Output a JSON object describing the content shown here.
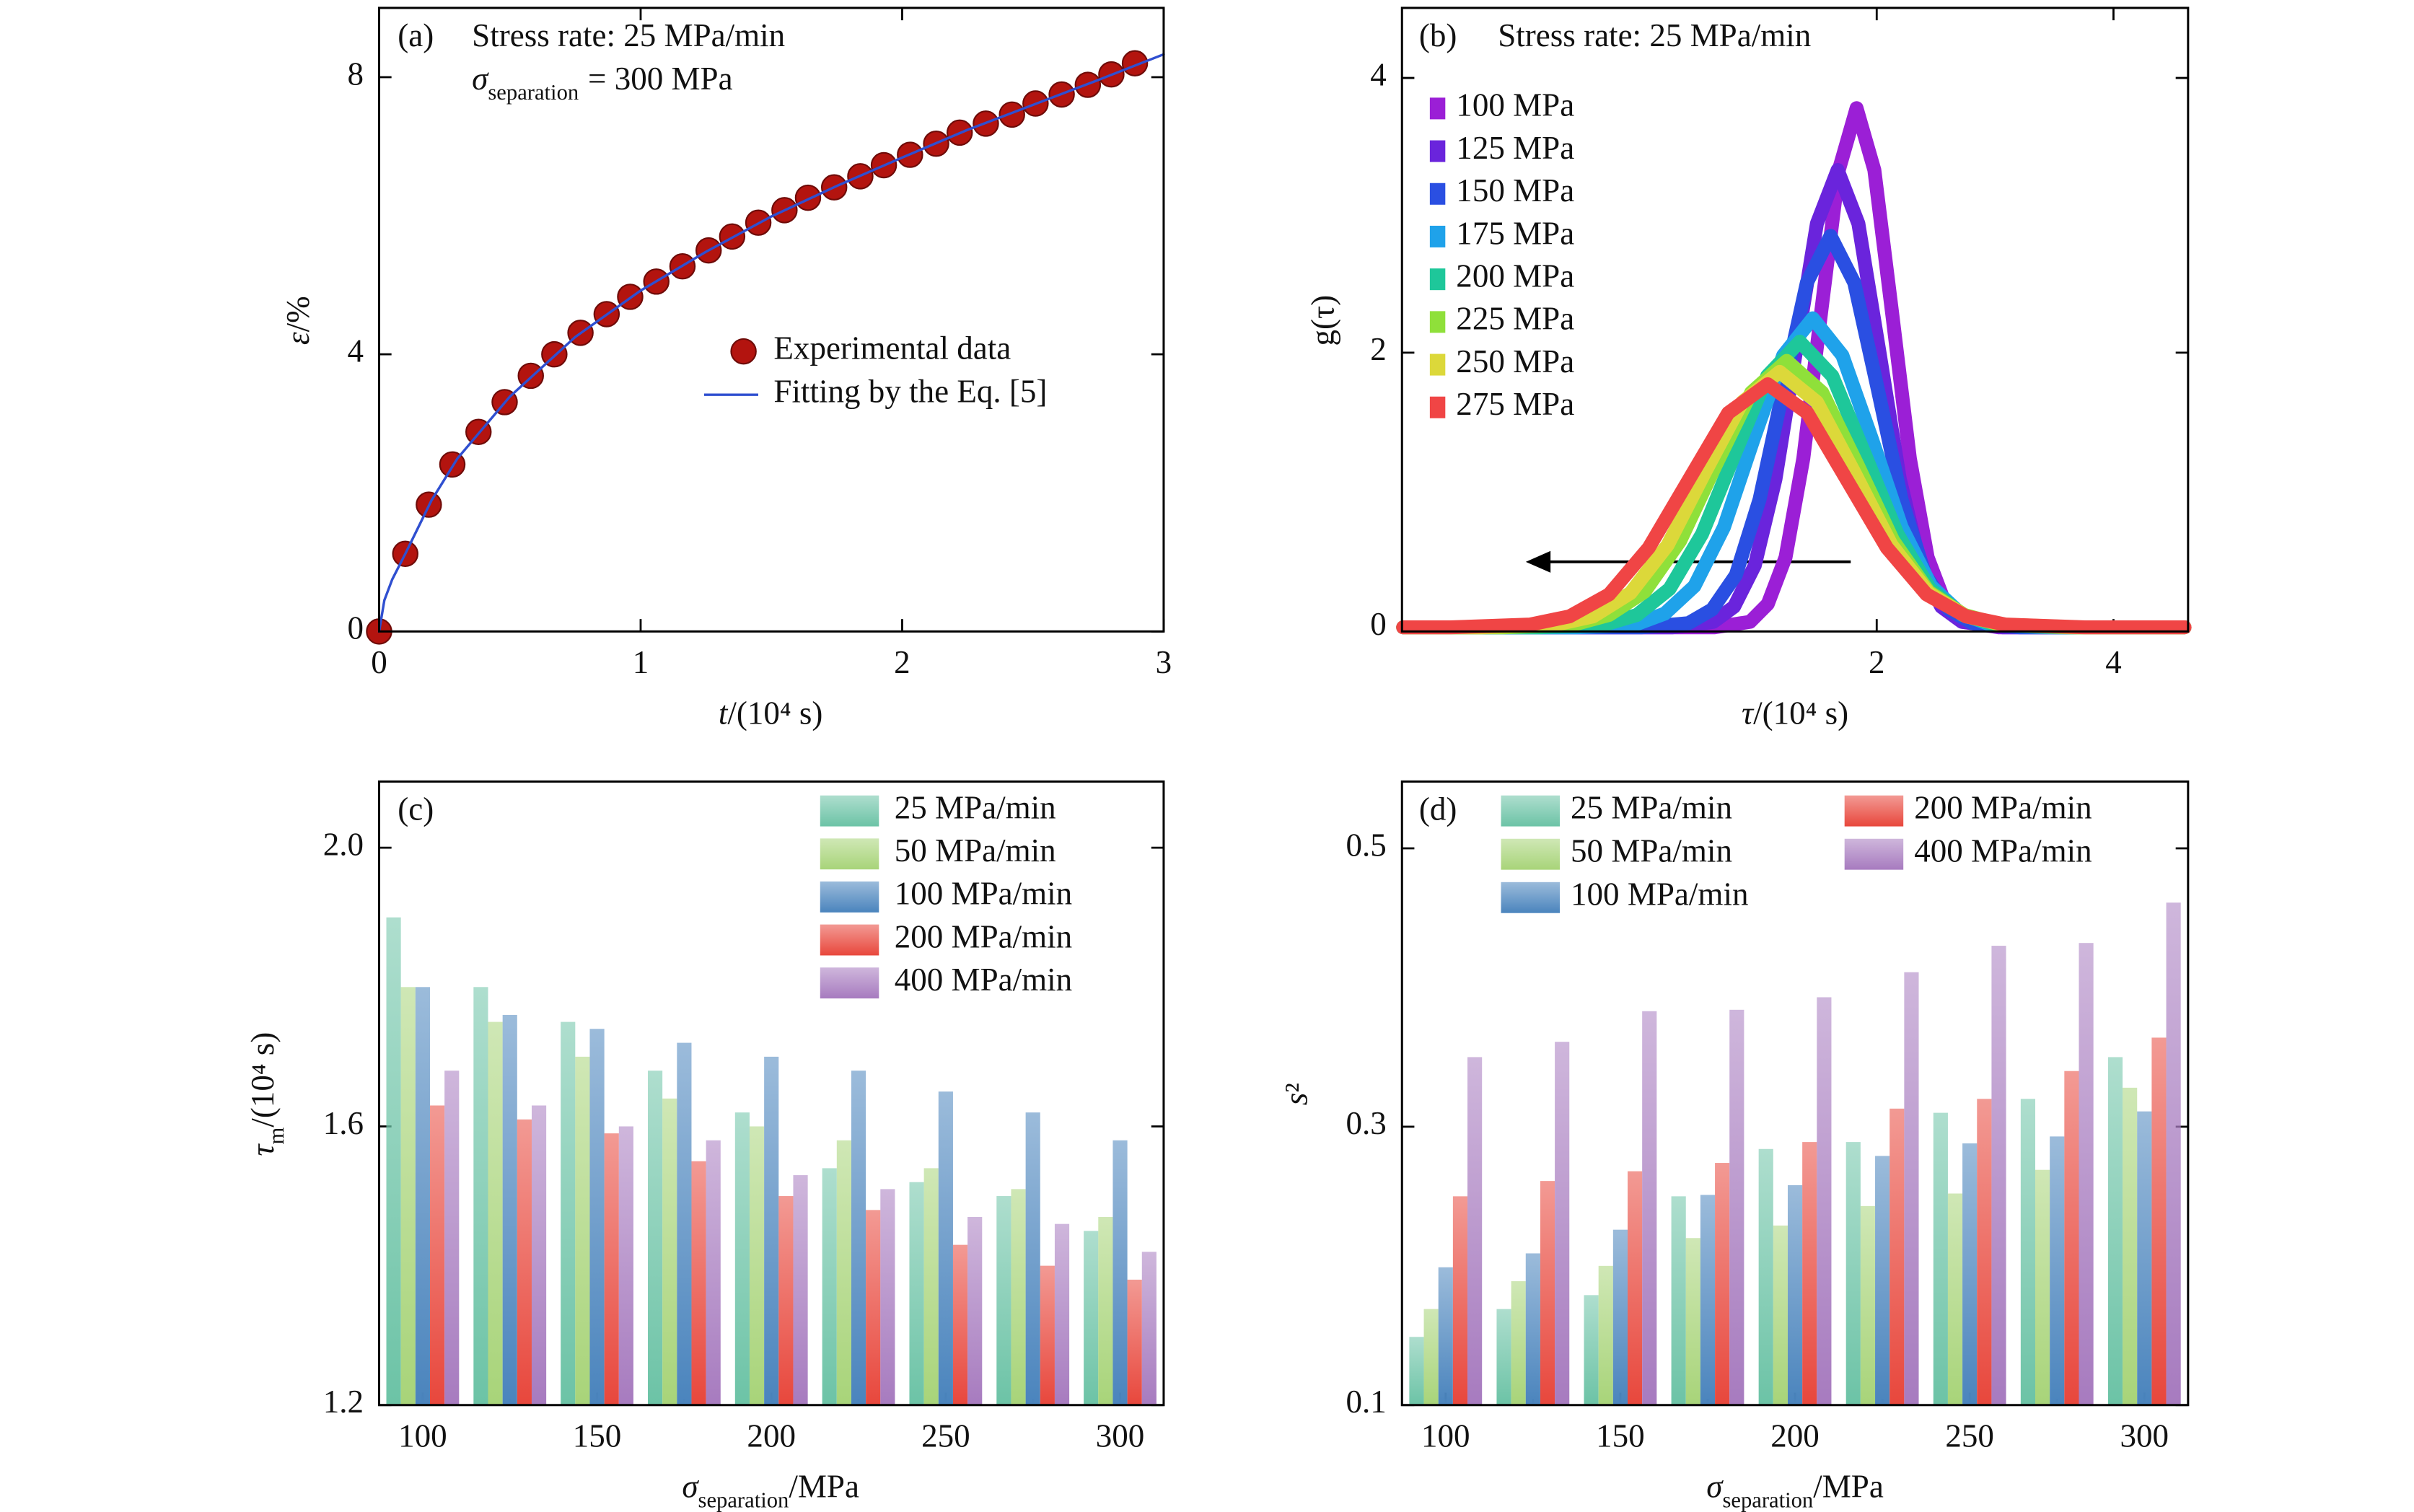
{
  "chart_data": [
    {
      "type": "scatter",
      "annotations": [
        "(a)",
        "Stress rate: 25 MPa/min",
        {
          "main": "σ",
          "sub": "separation",
          "rest": "= 300 MPa"
        }
      ],
      "xlabel": {
        "main": "t",
        "rest": "/(10⁴ s)"
      },
      "ylabel": {
        "main": "ε",
        "rest": "/%"
      },
      "xlim": [
        0,
        3
      ],
      "xticks": [
        0,
        1,
        2,
        3
      ],
      "ylim": [
        0,
        9
      ],
      "yticks": [
        0,
        4,
        8
      ],
      "series": [
        {
          "name": "Experimental data",
          "type": "scatter",
          "color": "#b3140f",
          "x": [
            0,
            0.1,
            0.19,
            0.28,
            0.38,
            0.48,
            0.58,
            0.67,
            0.77,
            0.87,
            0.96,
            1.06,
            1.16,
            1.26,
            1.35,
            1.45,
            1.55,
            1.64,
            1.74,
            1.84,
            1.93,
            2.03,
            2.13,
            2.22,
            2.32,
            2.42,
            2.51,
            2.61,
            2.71,
            2.8,
            2.89
          ],
          "values": [
            0,
            1.12,
            1.83,
            2.41,
            2.88,
            3.31,
            3.69,
            4.0,
            4.31,
            4.58,
            4.83,
            5.05,
            5.27,
            5.5,
            5.7,
            5.9,
            6.08,
            6.26,
            6.41,
            6.57,
            6.73,
            6.88,
            7.04,
            7.2,
            7.33,
            7.46,
            7.62,
            7.75,
            7.89,
            8.04,
            8.2
          ]
        },
        {
          "name": "Fitting by the Eq. [5]",
          "type": "line",
          "color": "#2f4fd0",
          "x": [
            0,
            0.02,
            0.05,
            0.1,
            0.2,
            0.3,
            0.5,
            0.75,
            1,
            1.25,
            1.5,
            1.75,
            2,
            2.25,
            2.5,
            2.75,
            3
          ],
          "values": [
            0,
            0.45,
            0.75,
            1.12,
            1.89,
            2.5,
            3.39,
            4.25,
            4.92,
            5.48,
            5.99,
            6.43,
            6.84,
            7.24,
            7.6,
            7.96,
            8.33
          ]
        }
      ]
    },
    {
      "type": "line",
      "annotations": [
        "(b)",
        "Stress rate: 25 MPa/min"
      ],
      "xlabel": {
        "main": "τ",
        "rest": "/(10⁴ s)"
      },
      "ylabel": "g(τ)",
      "xlim": [
        -2.01,
        4.63
      ],
      "xticks": [
        2,
        4
      ],
      "ylim": [
        -0.03,
        4.51
      ],
      "yticks": [
        0,
        2,
        4
      ],
      "series": [
        {
          "name": "100 MPa",
          "color": "#9b1fd6",
          "x": [
            -2.0,
            0.63,
            0.93,
            1.08,
            1.23,
            1.38,
            1.53,
            1.68,
            1.83,
            1.98,
            2.13,
            2.28,
            2.43,
            2.58,
            2.73,
            3.03,
            4.6
          ],
          "values": [
            0,
            0,
            0.04,
            0.17,
            0.51,
            1.23,
            2.29,
            3.33,
            3.78,
            3.33,
            2.29,
            1.23,
            0.51,
            0.17,
            0.04,
            0,
            0
          ]
        },
        {
          "name": "125 MPa",
          "color": "#6a24dc",
          "x": [
            -2.0,
            0.27,
            0.62,
            0.795,
            0.97,
            1.145,
            1.32,
            1.495,
            1.67,
            1.845,
            2.02,
            2.195,
            2.37,
            2.545,
            2.72,
            3.07,
            4.6
          ],
          "values": [
            0,
            0,
            0.04,
            0.15,
            0.45,
            1.08,
            2.02,
            2.94,
            3.33,
            2.94,
            2.02,
            1.08,
            0.45,
            0.15,
            0.04,
            0,
            0
          ]
        },
        {
          "name": "150 MPa",
          "color": "#2a4fe2",
          "x": [
            -2.0,
            0.01,
            0.41,
            0.61,
            0.81,
            1.01,
            1.21,
            1.41,
            1.61,
            1.81,
            2.01,
            2.21,
            2.41,
            2.61,
            2.81,
            3.21,
            4.6
          ],
          "values": [
            0,
            0,
            0.03,
            0.13,
            0.38,
            0.93,
            1.73,
            2.51,
            2.85,
            2.51,
            1.73,
            0.93,
            0.38,
            0.13,
            0.03,
            0,
            0
          ]
        },
        {
          "name": "175 MPa",
          "color": "#1fa2ea",
          "x": [
            -2.0,
            -0.54,
            -0.04,
            0.21,
            0.46,
            0.71,
            0.96,
            1.21,
            1.46,
            1.71,
            1.96,
            2.21,
            2.46,
            2.71,
            2.96,
            3.46,
            4.6
          ],
          "values": [
            0,
            0,
            0.02,
            0.1,
            0.3,
            0.73,
            1.37,
            1.98,
            2.25,
            1.98,
            1.37,
            0.73,
            0.3,
            0.1,
            0.02,
            0,
            0
          ]
        },
        {
          "name": "200 MPa",
          "color": "#1ec79a",
          "x": [
            -2.0,
            -0.85,
            -0.3,
            -0.025,
            0.25,
            0.525,
            0.8,
            1.075,
            1.35,
            1.625,
            1.9,
            2.175,
            2.45,
            2.725,
            3.0,
            3.55,
            4.6
          ],
          "values": [
            0,
            0,
            0.02,
            0.09,
            0.28,
            0.68,
            1.26,
            1.83,
            2.08,
            1.83,
            1.26,
            0.68,
            0.28,
            0.09,
            0.02,
            0,
            0
          ]
        },
        {
          "name": "225 MPa",
          "color": "#8fe03a",
          "x": [
            -2.0,
            -1.16,
            -0.56,
            -0.26,
            0.04,
            0.34,
            0.64,
            0.94,
            1.24,
            1.54,
            1.84,
            2.14,
            2.44,
            2.74,
            3.04,
            3.64,
            4.6
          ],
          "values": [
            0,
            0,
            0.02,
            0.09,
            0.26,
            0.63,
            1.18,
            1.71,
            1.94,
            1.71,
            1.18,
            0.63,
            0.26,
            0.09,
            0.02,
            0,
            0
          ]
        },
        {
          "name": "250 MPa",
          "color": "#dcd83a",
          "x": [
            -2.0,
            -1.34,
            -0.71,
            -0.395,
            -0.08,
            0.235,
            0.55,
            0.865,
            1.18,
            1.495,
            1.81,
            2.125,
            2.44,
            2.755,
            3.07,
            3.7,
            4.6
          ],
          "values": [
            0,
            0,
            0.02,
            0.08,
            0.25,
            0.6,
            1.13,
            1.64,
            1.86,
            1.64,
            1.13,
            0.6,
            0.25,
            0.08,
            0.02,
            0,
            0
          ]
        },
        {
          "name": "275 MPa",
          "color": "#f04545",
          "x": [
            -2.0,
            -1.6,
            -0.93,
            -0.595,
            -0.26,
            0.075,
            0.41,
            0.745,
            1.08,
            1.415,
            1.75,
            2.085,
            2.42,
            2.755,
            3.09,
            3.76,
            4.6
          ],
          "values": [
            0,
            0,
            0.02,
            0.08,
            0.24,
            0.58,
            1.07,
            1.56,
            1.77,
            1.56,
            1.07,
            0.58,
            0.24,
            0.08,
            0.02,
            0,
            0
          ]
        }
      ]
    },
    {
      "type": "bar",
      "annotations": [
        "(c)"
      ],
      "xlabel": {
        "main": "σ",
        "sub": "separation",
        "rest": "/MPa"
      },
      "ylabel": {
        "main": "τ",
        "sub": "m",
        "rest": "/(10⁴ s)"
      },
      "categories": [
        "100",
        null,
        "150",
        null,
        "200",
        null,
        "250",
        null,
        "300"
      ],
      "ylim": [
        1.2,
        2.095
      ],
      "yticks": [
        1.2,
        1.6,
        {
          "value": 2,
          "label": "2.0"
        }
      ],
      "series": [
        {
          "name": "25 MPa/min",
          "color": "#6cc3a6",
          "values": [
            1.9,
            1.8,
            1.75,
            1.68,
            1.62,
            1.54,
            1.52,
            1.5,
            1.45
          ]
        },
        {
          "name": "50 MPa/min",
          "color": "#a8d479",
          "values": [
            1.8,
            1.75,
            1.7,
            1.64,
            1.6,
            1.58,
            1.54,
            1.51,
            1.47
          ]
        },
        {
          "name": "100 MPa/min",
          "color": "#4a84bd",
          "values": [
            1.8,
            1.76,
            1.74,
            1.72,
            1.7,
            1.68,
            1.65,
            1.62,
            1.58
          ]
        },
        {
          "name": "200 MPa/min",
          "color": "#e8473c",
          "values": [
            1.63,
            1.61,
            1.59,
            1.55,
            1.5,
            1.48,
            1.43,
            1.4,
            1.38
          ]
        },
        {
          "name": "400 MPa/min",
          "color": "#a77bbf",
          "values": [
            1.68,
            1.63,
            1.6,
            1.58,
            1.53,
            1.51,
            1.47,
            1.46,
            1.42
          ]
        }
      ]
    },
    {
      "type": "bar",
      "annotations": [
        "(d)"
      ],
      "xlabel": {
        "main": "σ",
        "sub": "separation",
        "rest": "/MPa"
      },
      "ylabel": {
        "main": "s",
        "rest": "²"
      },
      "categories": [
        "100",
        null,
        "150",
        null,
        "200",
        null,
        "250",
        null,
        "300"
      ],
      "ylim": [
        0.1,
        0.548
      ],
      "yticks": [
        0.1,
        0.3,
        0.5
      ],
      "series": [
        {
          "name": "25 MPa/min",
          "color": "#6cc3a6",
          "values": [
            0.149,
            0.169,
            0.179,
            0.25,
            0.284,
            0.289,
            0.31,
            0.32,
            0.35
          ]
        },
        {
          "name": "50 MPa/min",
          "color": "#a8d479",
          "values": [
            0.169,
            0.189,
            0.2,
            0.22,
            0.229,
            0.243,
            0.252,
            0.269,
            0.328
          ]
        },
        {
          "name": "100 MPa/min",
          "color": "#4a84bd",
          "values": [
            0.199,
            0.209,
            0.226,
            0.251,
            0.258,
            0.279,
            0.288,
            0.293,
            0.311
          ]
        },
        {
          "name": "200 MPa/min",
          "color": "#e8473c",
          "values": [
            0.25,
            0.261,
            0.268,
            0.274,
            0.289,
            0.313,
            0.32,
            0.34,
            0.364
          ]
        },
        {
          "name": "400 MPa/min",
          "color": "#a77bbf",
          "values": [
            0.35,
            0.361,
            0.383,
            0.384,
            0.393,
            0.411,
            0.43,
            0.432,
            0.461
          ]
        }
      ]
    }
  ]
}
